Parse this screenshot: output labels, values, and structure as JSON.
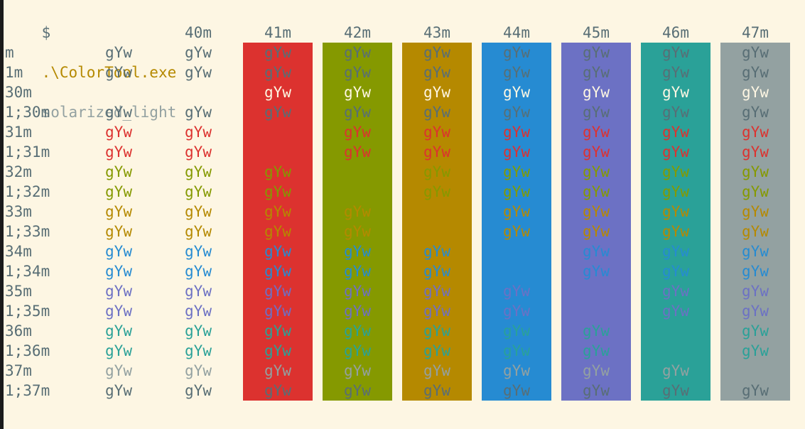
{
  "prompt": {
    "symbol": "$",
    "command": ".\\ColorTool.exe",
    "argument": "solarized_light"
  },
  "sample_text": "gYw",
  "colors": {
    "background": "#fdf6e3",
    "default_fg": "#586e75",
    "black": "#073642",
    "red": "#dc322f",
    "green": "#859900",
    "yellow": "#b58900",
    "blue": "#268bd2",
    "magenta": "#6c71c4",
    "cyan": "#2aa198",
    "white": "#93a1a1",
    "bright_white": "#fdf6e3"
  },
  "column_headers": [
    "",
    "",
    "40m",
    "41m",
    "42m",
    "43m",
    "44m",
    "45m",
    "46m",
    "47m"
  ],
  "background_columns": [
    {
      "code": "41m",
      "color": "#dc322f"
    },
    {
      "code": "42m",
      "color": "#859900"
    },
    {
      "code": "43m",
      "color": "#b58900"
    },
    {
      "code": "44m",
      "color": "#268bd2"
    },
    {
      "code": "45m",
      "color": "#6c71c4"
    },
    {
      "code": "46m",
      "color": "#2aa198"
    },
    {
      "code": "47m",
      "color": "#93a1a1"
    }
  ],
  "rows": [
    {
      "label": "m",
      "fg": "#586e75"
    },
    {
      "label": "1m",
      "fg": "#586e75"
    },
    {
      "label": "30m",
      "fg": "#fdf6e3"
    },
    {
      "label": "1;30m",
      "fg": "#586e75"
    },
    {
      "label": "31m",
      "fg": "#dc322f"
    },
    {
      "label": "1;31m",
      "fg": "#dc322f"
    },
    {
      "label": "32m",
      "fg": "#859900"
    },
    {
      "label": "1;32m",
      "fg": "#859900"
    },
    {
      "label": "33m",
      "fg": "#b58900"
    },
    {
      "label": "1;33m",
      "fg": "#b58900"
    },
    {
      "label": "34m",
      "fg": "#268bd2"
    },
    {
      "label": "1;34m",
      "fg": "#268bd2"
    },
    {
      "label": "35m",
      "fg": "#6c71c4"
    },
    {
      "label": "1;35m",
      "fg": "#6c71c4"
    },
    {
      "label": "36m",
      "fg": "#2aa198"
    },
    {
      "label": "1;36m",
      "fg": "#2aa198"
    },
    {
      "label": "37m",
      "fg": "#93a1a1"
    },
    {
      "label": "1;37m",
      "fg": "#586e75"
    }
  ]
}
